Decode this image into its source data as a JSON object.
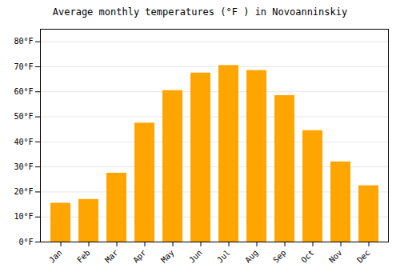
{
  "chart_data": {
    "type": "bar",
    "title": "Average monthly temperatures (°F ) in Novoanninskiy",
    "categories": [
      "Jan",
      "Feb",
      "Mar",
      "Apr",
      "May",
      "Jun",
      "Jul",
      "Aug",
      "Sep",
      "Oct",
      "Nov",
      "Dec"
    ],
    "values": [
      15.5,
      17.0,
      27.5,
      47.5,
      60.5,
      67.5,
      70.5,
      68.5,
      58.5,
      44.5,
      32.0,
      22.5
    ],
    "color": "#FFA500",
    "ylim": [
      0,
      85
    ],
    "yticks": [
      {
        "value": 0,
        "label": "0°F"
      },
      {
        "value": 10,
        "label": "10°F"
      },
      {
        "value": 20,
        "label": "20°F"
      },
      {
        "value": 30,
        "label": "30°F"
      },
      {
        "value": 40,
        "label": "40°F"
      },
      {
        "value": 50,
        "label": "50°F"
      },
      {
        "value": 60,
        "label": "60°F"
      },
      {
        "value": 70,
        "label": "70°F"
      },
      {
        "value": 80,
        "label": "80°F"
      }
    ],
    "grid": true
  }
}
